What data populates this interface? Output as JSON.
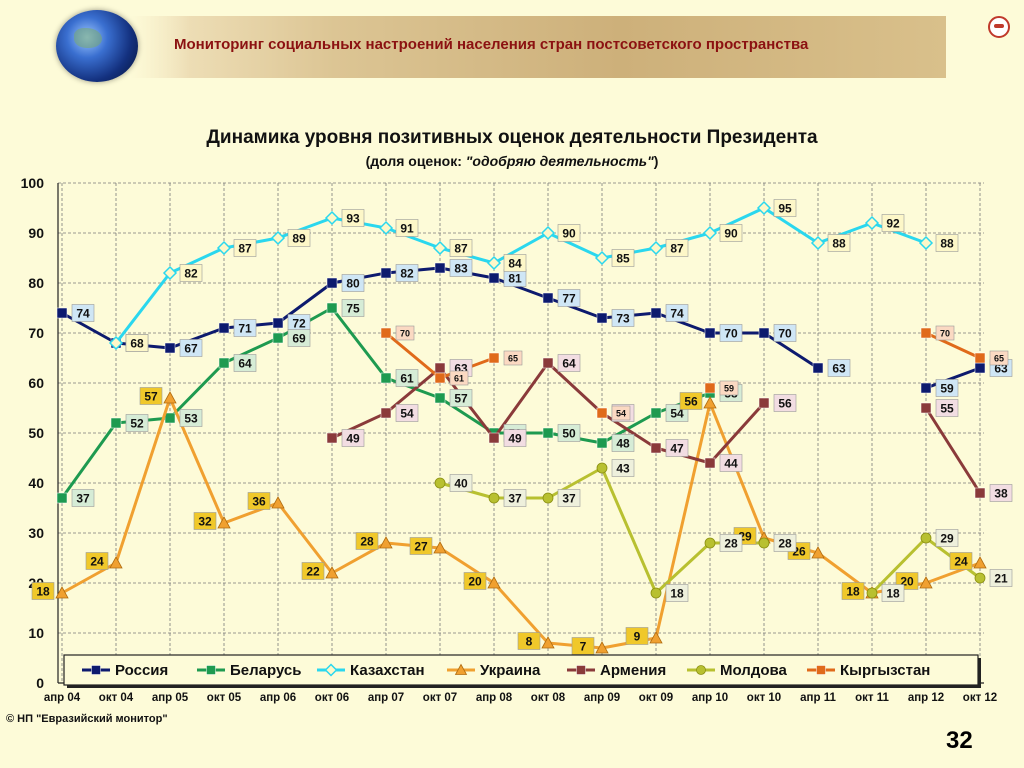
{
  "header": {
    "title": "Мониторинг социальных настроений населения стран постсоветского пространства"
  },
  "footer": {
    "copyright": "© НП \"Евразийский монитор\"",
    "page_number": "32"
  },
  "chart_data": {
    "type": "line",
    "title": "Динамика уровня позитивных оценок деятельности Президента",
    "subtitle_prefix": "(доля оценок: ",
    "subtitle_quote": "\"одобряю деятельность\"",
    "subtitle_suffix": ")",
    "xlabel": "",
    "ylabel": "",
    "ylim": [
      0,
      100
    ],
    "yticks": [
      0,
      10,
      20,
      30,
      40,
      50,
      60,
      70,
      80,
      90,
      100
    ],
    "grid": true,
    "legend_position": "bottom",
    "categories": [
      "апр 04",
      "окт 04",
      "апр 05",
      "окт 05",
      "апр 06",
      "окт 06",
      "апр 07",
      "окт 07",
      "апр 08",
      "окт 08",
      "апр 09",
      "окт 09",
      "апр 10",
      "окт 10",
      "апр 11",
      "окт 11",
      "апр 12",
      "окт 12"
    ],
    "series": [
      {
        "name": "Россия",
        "color": "#0d1a6e",
        "marker": "square",
        "label_bg": "#cfe6f5",
        "values": [
          74,
          68,
          67,
          71,
          72,
          80,
          82,
          83,
          81,
          77,
          73,
          74,
          70,
          70,
          63,
          null,
          59,
          63
        ]
      },
      {
        "name": "Беларусь",
        "color": "#1e9a50",
        "marker": "square",
        "label_bg": "#d6ecd6",
        "values": [
          37,
          52,
          53,
          64,
          69,
          75,
          61,
          57,
          50,
          50,
          48,
          54,
          58,
          null,
          null,
          null,
          null,
          null
        ]
      },
      {
        "name": "Казахстан",
        "color": "#2ad7ee",
        "marker": "diamond",
        "label_bg": "#fdf7c8",
        "values": [
          null,
          68,
          82,
          87,
          89,
          93,
          91,
          87,
          84,
          90,
          85,
          87,
          90,
          95,
          88,
          92,
          88,
          null
        ]
      },
      {
        "name": "Украина",
        "color": "#f0a030",
        "marker": "triangle",
        "label_bg": "#f0c82a",
        "values": [
          18,
          24,
          57,
          32,
          36,
          22,
          28,
          27,
          20,
          8,
          7,
          9,
          56,
          29,
          26,
          18,
          20,
          24
        ]
      },
      {
        "name": "Армения",
        "color": "#8a3a3a",
        "marker": "square",
        "label_bg": "#f2dde2",
        "values": [
          null,
          null,
          null,
          null,
          null,
          49,
          54,
          63,
          49,
          64,
          54,
          47,
          44,
          56,
          null,
          null,
          55,
          38
        ]
      },
      {
        "name": "Молдова",
        "color": "#b8c030",
        "marker": "circle",
        "label_bg": "#eef0dc",
        "values": [
          null,
          null,
          null,
          null,
          null,
          null,
          null,
          40,
          37,
          37,
          43,
          18,
          28,
          28,
          null,
          18,
          29,
          21
        ]
      },
      {
        "name": "Кыргызстан",
        "color": "#e06a1a",
        "marker": "square",
        "label_bg": "#fbd9c2",
        "values": [
          null,
          null,
          null,
          null,
          null,
          null,
          70,
          61,
          65,
          null,
          54,
          null,
          59,
          null,
          null,
          null,
          70,
          65
        ]
      }
    ]
  }
}
